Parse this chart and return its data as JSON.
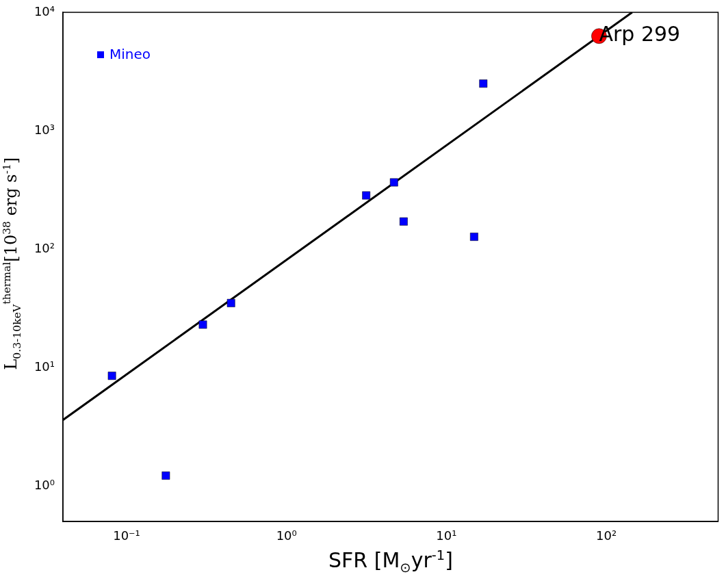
{
  "chart_data": {
    "type": "scatter",
    "xlabel": "SFR [M$_{⊙}$yr$^{-1}$]",
    "ylabel": "L$_{0.3-10keV}$$^{thermal}$[10$^{38}$ erg s$^{-1}$]",
    "log": "xy",
    "grid": false,
    "legend": "top left",
    "xlim": [
      0.04,
      500
    ],
    "ylim": [
      0.5,
      10000
    ],
    "xticks": [
      {
        "value": 0.1,
        "label": "10⁻¹"
      },
      {
        "value": 1,
        "label": "10⁰"
      },
      {
        "value": 10,
        "label": "10¹"
      },
      {
        "value": 100,
        "label": "10²"
      }
    ],
    "yticks": [
      {
        "value": 1,
        "label": "10⁰"
      },
      {
        "value": 10,
        "label": "10¹"
      },
      {
        "value": 100,
        "label": "10²"
      },
      {
        "value": 1000,
        "label": "10³"
      },
      {
        "value": 10000,
        "label": "10⁴"
      }
    ],
    "series": [
      {
        "name": "Mineo",
        "color": "#0000ff",
        "marker": "square",
        "x": [
          0.081,
          0.176,
          0.3,
          0.45,
          3.15,
          4.7,
          5.4,
          14.9,
          17
        ],
        "values": [
          8.5,
          1.22,
          23,
          35,
          284,
          366,
          171,
          127,
          2500
        ]
      },
      {
        "color": "#ff0000",
        "marker": "circle",
        "x": [
          90
        ],
        "values": [
          6300
        ]
      },
      {
        "type": "line",
        "color": "#000000",
        "marker": "none",
        "line_style": "solid",
        "x": [
          0.04,
          145
        ],
        "values": [
          3.6,
          10000
        ]
      }
    ],
    "annotations": [
      {
        "text": "Arp 299",
        "x": 90,
        "y": 6300
      }
    ]
  }
}
